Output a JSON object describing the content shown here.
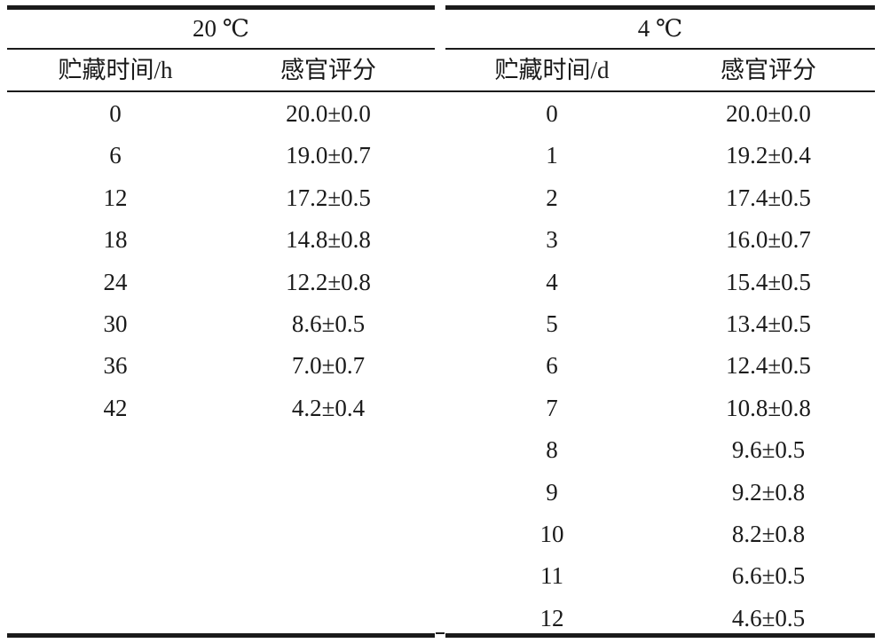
{
  "table": {
    "group_headers": [
      "20 ℃",
      "4 ℃"
    ],
    "column_headers": [
      "贮藏时间/h",
      "感官评分",
      "贮藏时间/d",
      "感官评分"
    ],
    "left_rows": [
      {
        "time": "0",
        "score": "20.0±0.0"
      },
      {
        "time": "6",
        "score": "19.0±0.7"
      },
      {
        "time": "12",
        "score": "17.2±0.5"
      },
      {
        "time": "18",
        "score": "14.8±0.8"
      },
      {
        "time": "24",
        "score": "12.2±0.8"
      },
      {
        "time": "30",
        "score": "8.6±0.5"
      },
      {
        "time": "36",
        "score": "7.0±0.7"
      },
      {
        "time": "42",
        "score": "4.2±0.4"
      }
    ],
    "right_rows": [
      {
        "time": "0",
        "score": "20.0±0.0"
      },
      {
        "time": "1",
        "score": "19.2±0.4"
      },
      {
        "time": "2",
        "score": "17.4±0.5"
      },
      {
        "time": "3",
        "score": "16.0±0.7"
      },
      {
        "time": "4",
        "score": "15.4±0.5"
      },
      {
        "time": "5",
        "score": "13.4±0.5"
      },
      {
        "time": "6",
        "score": "12.4±0.5"
      },
      {
        "time": "7",
        "score": "10.8±0.8"
      },
      {
        "time": "8",
        "score": "9.6±0.5"
      },
      {
        "time": "9",
        "score": "9.2±0.8"
      },
      {
        "time": "10",
        "score": "8.2±0.8"
      },
      {
        "time": "11",
        "score": "6.6±0.5"
      },
      {
        "time": "12",
        "score": "4.6±0.5"
      }
    ]
  }
}
